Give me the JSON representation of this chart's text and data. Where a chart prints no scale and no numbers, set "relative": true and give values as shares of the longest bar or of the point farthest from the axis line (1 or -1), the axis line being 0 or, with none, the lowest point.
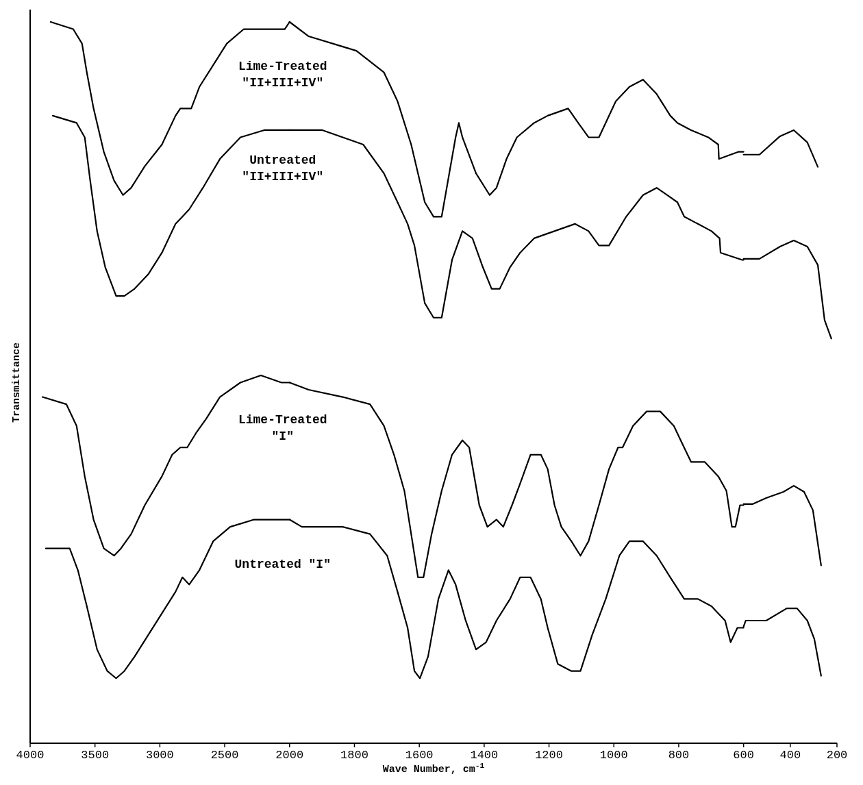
{
  "chart_data": [
    {
      "type": "line",
      "relative": true,
      "ylabel": "Transmittance",
      "xlim": [
        4000,
        2000
      ],
      "xticks": [
        4000,
        3500,
        3000,
        2500,
        2000
      ],
      "series": [
        {
          "name": "Lime-Treated\n\"II+III+IV\"",
          "color": "#000000",
          "x": [
            3842,
            3668,
            3600,
            3563,
            3511,
            3432,
            3353,
            3284,
            3221,
            3116,
            2984,
            2879,
            2842,
            2800,
            2758,
            2695,
            2589,
            2484,
            2353,
            2195,
            2037,
            2000
          ],
          "values": [
            1.0,
            0.99,
            0.97,
            0.93,
            0.88,
            0.82,
            0.78,
            0.76,
            0.77,
            0.8,
            0.83,
            0.87,
            0.88,
            0.88,
            0.88,
            0.91,
            0.94,
            0.97,
            0.99,
            0.99,
            0.99,
            1.0
          ]
        },
        {
          "name": "Untreated\n\"II+III+IV\"",
          "color": "#000000",
          "x": [
            3826,
            3642,
            3579,
            3537,
            3484,
            3421,
            3337,
            3274,
            3195,
            3090,
            2984,
            2879,
            2826,
            2774,
            2668,
            2537,
            2379,
            2195,
            2011,
            2000
          ],
          "values": [
            0.87,
            0.86,
            0.84,
            0.78,
            0.71,
            0.66,
            0.62,
            0.62,
            0.63,
            0.65,
            0.68,
            0.72,
            0.73,
            0.74,
            0.77,
            0.81,
            0.84,
            0.85,
            0.85,
            0.85
          ]
        },
        {
          "name": "Lime-Treated\n\"I\"",
          "color": "#000000",
          "x": [
            3905,
            3721,
            3642,
            3579,
            3511,
            3432,
            3353,
            3300,
            3221,
            3116,
            2984,
            2905,
            2842,
            2789,
            2721,
            2642,
            2537,
            2379,
            2221,
            2063,
            2000
          ],
          "values": [
            0.48,
            0.47,
            0.44,
            0.37,
            0.31,
            0.27,
            0.26,
            0.27,
            0.29,
            0.33,
            0.37,
            0.4,
            0.41,
            0.41,
            0.43,
            0.45,
            0.48,
            0.5,
            0.51,
            0.5,
            0.5
          ]
        },
        {
          "name": "Untreated \"I\"",
          "color": "#000000",
          "x": [
            3879,
            3695,
            3632,
            3563,
            3484,
            3405,
            3337,
            3274,
            3195,
            3090,
            2984,
            2879,
            2826,
            2774,
            2695,
            2589,
            2458,
            2274,
            2116,
            2000
          ],
          "values": [
            0.27,
            0.27,
            0.24,
            0.19,
            0.13,
            0.1,
            0.09,
            0.1,
            0.12,
            0.15,
            0.18,
            0.21,
            0.23,
            0.22,
            0.24,
            0.28,
            0.3,
            0.31,
            0.31,
            0.31
          ]
        }
      ]
    },
    {
      "type": "line",
      "relative": true,
      "xlabel": "Wave Number, cm$^{-1}$",
      "xlim": [
        2000,
        600
      ],
      "xticks": [
        1800,
        1600,
        1400,
        1200,
        1000,
        800
      ],
      "series": [
        {
          "color": "#000000",
          "x": [
            2000,
            1941,
            1794,
            1709,
            1667,
            1625,
            1583,
            1556,
            1531,
            1488,
            1478,
            1467,
            1425,
            1383,
            1362,
            1331,
            1299,
            1246,
            1204,
            1141,
            1110,
            1078,
            1046,
            994,
            952,
            910,
            868,
            826,
            804,
            762,
            709,
            678,
            676,
            615,
            600
          ],
          "values": [
            1.0,
            0.98,
            0.96,
            0.93,
            0.89,
            0.83,
            0.75,
            0.73,
            0.73,
            0.84,
            0.86,
            0.84,
            0.79,
            0.76,
            0.77,
            0.81,
            0.84,
            0.86,
            0.87,
            0.88,
            0.86,
            0.84,
            0.84,
            0.89,
            0.91,
            0.92,
            0.9,
            0.87,
            0.86,
            0.85,
            0.84,
            0.83,
            0.81,
            0.82,
            0.82
          ]
        },
        {
          "color": "#000000",
          "x": [
            2000,
            1899,
            1836,
            1773,
            1709,
            1667,
            1636,
            1615,
            1583,
            1556,
            1531,
            1499,
            1467,
            1436,
            1404,
            1377,
            1352,
            1320,
            1289,
            1246,
            1183,
            1120,
            1078,
            1046,
            1015,
            962,
            910,
            868,
            836,
            804,
            783,
            741,
            699,
            674,
            671,
            604,
            600
          ],
          "values": [
            0.85,
            0.85,
            0.84,
            0.83,
            0.79,
            0.75,
            0.72,
            0.69,
            0.61,
            0.59,
            0.59,
            0.67,
            0.71,
            0.7,
            0.66,
            0.63,
            0.63,
            0.66,
            0.68,
            0.7,
            0.71,
            0.72,
            0.71,
            0.69,
            0.69,
            0.73,
            0.76,
            0.77,
            0.76,
            0.75,
            0.73,
            0.72,
            0.71,
            0.7,
            0.68,
            0.67,
            0.67
          ]
        },
        {
          "color": "#000000",
          "x": [
            2000,
            1941,
            1836,
            1752,
            1709,
            1678,
            1646,
            1625,
            1604,
            1587,
            1562,
            1531,
            1499,
            1467,
            1446,
            1415,
            1390,
            1362,
            1341,
            1314,
            1289,
            1257,
            1225,
            1204,
            1183,
            1162,
            1131,
            1103,
            1078,
            1046,
            1015,
            987,
            973,
            941,
            899,
            857,
            815,
            794,
            762,
            720,
            678,
            653,
            636,
            625,
            611,
            600
          ],
          "values": [
            0.5,
            0.49,
            0.48,
            0.47,
            0.44,
            0.4,
            0.35,
            0.29,
            0.23,
            0.23,
            0.29,
            0.35,
            0.4,
            0.42,
            0.41,
            0.33,
            0.3,
            0.31,
            0.3,
            0.33,
            0.36,
            0.4,
            0.4,
            0.38,
            0.33,
            0.3,
            0.28,
            0.26,
            0.28,
            0.33,
            0.38,
            0.41,
            0.41,
            0.44,
            0.46,
            0.46,
            0.44,
            0.42,
            0.39,
            0.39,
            0.37,
            0.35,
            0.3,
            0.3,
            0.33,
            0.33
          ]
        },
        {
          "color": "#000000",
          "x": [
            2000,
            1962,
            1836,
            1752,
            1699,
            1667,
            1636,
            1615,
            1598,
            1573,
            1541,
            1510,
            1488,
            1457,
            1425,
            1394,
            1362,
            1320,
            1289,
            1257,
            1225,
            1204,
            1173,
            1131,
            1103,
            1067,
            1025,
            983,
            952,
            910,
            868,
            826,
            783,
            741,
            699,
            657,
            640,
            619,
            600
          ],
          "values": [
            0.31,
            0.3,
            0.3,
            0.29,
            0.26,
            0.21,
            0.16,
            0.1,
            0.09,
            0.12,
            0.2,
            0.24,
            0.22,
            0.17,
            0.13,
            0.14,
            0.17,
            0.2,
            0.23,
            0.23,
            0.2,
            0.16,
            0.11,
            0.1,
            0.1,
            0.15,
            0.2,
            0.26,
            0.28,
            0.28,
            0.26,
            0.23,
            0.2,
            0.2,
            0.19,
            0.17,
            0.14,
            0.16,
            0.16
          ]
        }
      ]
    },
    {
      "type": "line",
      "relative": true,
      "xlim": [
        600,
        200
      ],
      "xticks": [
        600,
        400,
        200
      ],
      "series": [
        {
          "color": "#000000",
          "x": [
            600,
            532,
            444,
            385,
            327,
            282
          ],
          "values": [
            0.96,
            0.96,
            0.99,
            1.0,
            0.98,
            0.94
          ]
        },
        {
          "color": "#000000",
          "x": [
            600,
            532,
            444,
            385,
            327,
            282,
            253,
            224
          ],
          "values": [
            0.79,
            0.79,
            0.81,
            0.82,
            0.81,
            0.78,
            0.69,
            0.66
          ]
        },
        {
          "color": "#000000",
          "x": [
            600,
            562,
            503,
            429,
            385,
            341,
            303,
            268
          ],
          "values": [
            0.39,
            0.39,
            0.4,
            0.41,
            0.42,
            0.41,
            0.38,
            0.29
          ]
        },
        {
          "color": "#000000",
          "x": [
            600,
            591,
            503,
            415,
            371,
            327,
            297,
            268
          ],
          "values": [
            0.19,
            0.2,
            0.2,
            0.22,
            0.22,
            0.2,
            0.17,
            0.11
          ]
        }
      ]
    }
  ]
}
